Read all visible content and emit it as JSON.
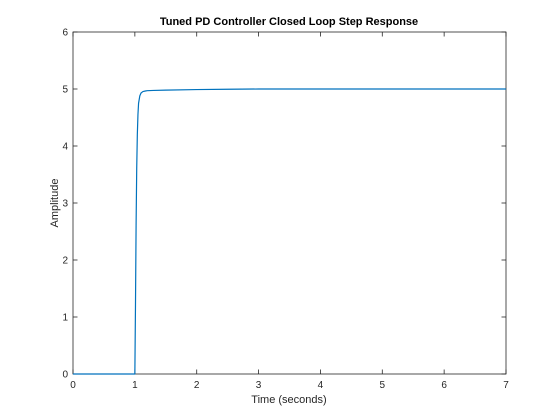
{
  "chart_data": {
    "type": "line",
    "title": "Tuned PD Controller Closed Loop Step Response",
    "xlabel": "Time (seconds)",
    "ylabel": "Amplitude",
    "xlim": [
      0,
      7
    ],
    "ylim": [
      0,
      6
    ],
    "xticks": [
      "0",
      "1",
      "2",
      "3",
      "4",
      "5",
      "6",
      "7"
    ],
    "yticks": [
      "0",
      "1",
      "2",
      "3",
      "4",
      "5",
      "6"
    ],
    "grid": false,
    "legend": "none",
    "series": [
      {
        "color": "#0072bd",
        "x": [
          0,
          1.0,
          1.01,
          1.02,
          1.03,
          1.04,
          1.05,
          1.06,
          1.08,
          1.1,
          1.13,
          1.17,
          1.2,
          1.3,
          1.5,
          2.0,
          2.5,
          3.0,
          4.0,
          5.0,
          6.0,
          7.0
        ],
        "y": [
          0,
          0,
          1.2,
          2.6,
          3.6,
          4.2,
          4.55,
          4.75,
          4.88,
          4.93,
          4.955,
          4.965,
          4.97,
          4.975,
          4.98,
          4.99,
          4.995,
          5.0,
          5.0,
          5.0,
          5.0,
          5.0
        ]
      }
    ]
  }
}
